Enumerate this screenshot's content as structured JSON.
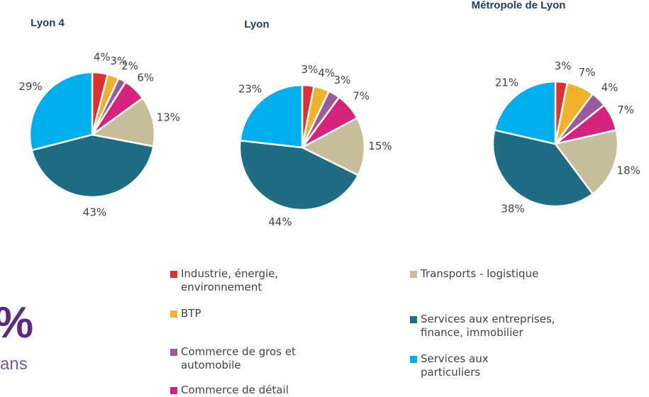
{
  "categories": [
    "Industrie, énergie, environnement",
    "BTP",
    "Commerce de gros et automobile",
    "Commerce de détail",
    "Transports - logistique",
    "Services aux entreprises, finance, immobilier",
    "Services aux particuliers"
  ],
  "colors": [
    "#e03131",
    "#f0b22a",
    "#9b5b9b",
    "#d6247c",
    "#c5be98",
    "#1f6d84",
    "#00aeef"
  ],
  "chart_data": [
    {
      "type": "pie",
      "title": "Lyon 4",
      "values": [
        4,
        3,
        2,
        6,
        13,
        43,
        29
      ],
      "value_labels": [
        "4%",
        "3%",
        "2%",
        "6%",
        "13%",
        "43%",
        "29%"
      ]
    },
    {
      "type": "pie",
      "title": "Lyon",
      "values": [
        3,
        4,
        3,
        7,
        15,
        44,
        23
      ],
      "value_labels": [
        "3%",
        "4%",
        "3%",
        "7%",
        "15%",
        "44%",
        "23%"
      ]
    },
    {
      "type": "pie",
      "title": "Métropole de Lyon",
      "values": [
        3,
        7,
        4,
        7,
        18,
        38,
        21
      ],
      "value_labels": [
        "3%",
        "7%",
        "4%",
        "7%",
        "18%",
        "38%",
        "21%"
      ]
    }
  ],
  "fragments": {
    "big": "%",
    "small": "ans"
  }
}
